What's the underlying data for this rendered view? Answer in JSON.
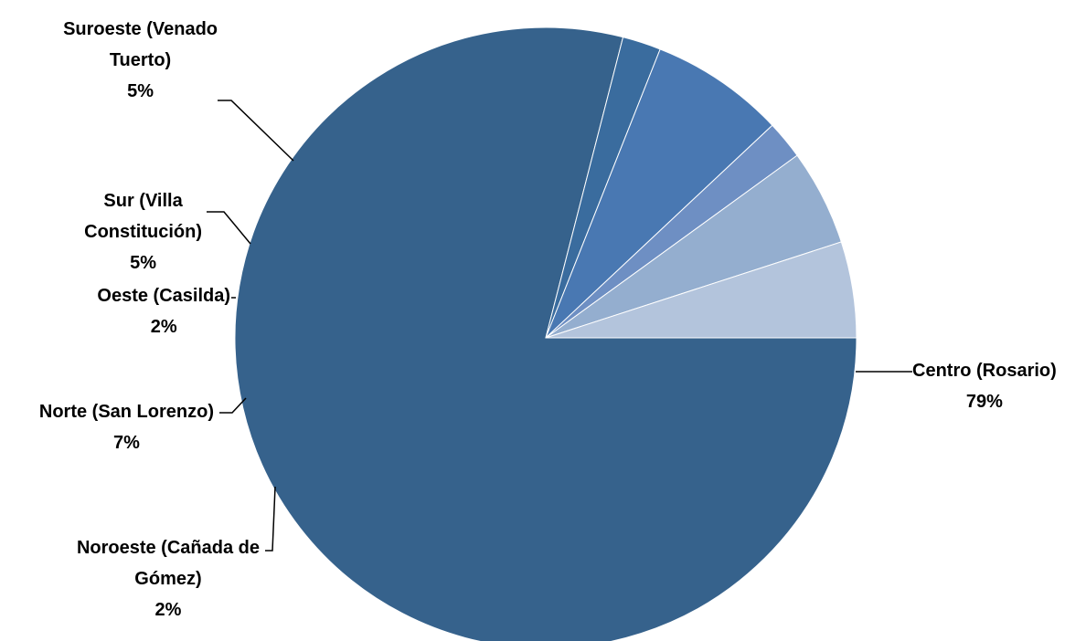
{
  "chart_data": {
    "type": "pie",
    "start_angle_deg": 0,
    "slices": [
      {
        "label_lines": [
          "Centro (Rosario)"
        ],
        "value_text": "79%",
        "value": 79,
        "color": "#36628C"
      },
      {
        "label_lines": [
          "Noroeste (Cañada de",
          "Gómez)"
        ],
        "value_text": "2%",
        "value": 2,
        "color": "#3A6C9E"
      },
      {
        "label_lines": [
          "Norte (San Lorenzo)"
        ],
        "value_text": "7%",
        "value": 7,
        "color": "#4978B2"
      },
      {
        "label_lines": [
          "Oeste (Casilda)"
        ],
        "value_text": "2%",
        "value": 2,
        "color": "#6E8FC3"
      },
      {
        "label_lines": [
          "Sur (Villa",
          "Constitución)"
        ],
        "value_text": "5%",
        "value": 5,
        "color": "#94AECF"
      },
      {
        "label_lines": [
          "Suroeste (Venado",
          "Tuerto)"
        ],
        "value_text": "5%",
        "value": 5,
        "color": "#B3C4DC"
      }
    ]
  }
}
